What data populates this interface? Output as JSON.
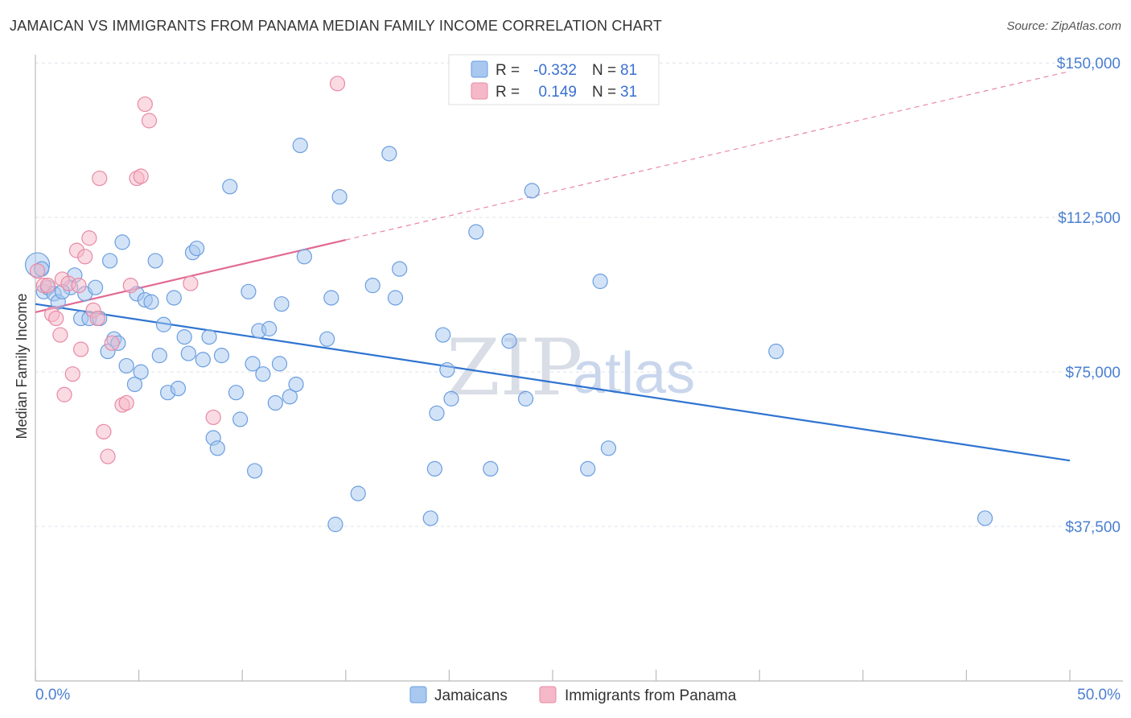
{
  "header": {
    "title": "JAMAICAN VS IMMIGRANTS FROM PANAMA MEDIAN FAMILY INCOME CORRELATION CHART",
    "source": "Source: ZipAtlas.com"
  },
  "watermark": {
    "part1": "ZIP",
    "part2": "atlas"
  },
  "legend_top": {
    "rows": [
      {
        "r_label": "R =",
        "r_value": "-0.332",
        "n_label": "N =",
        "n_value": "81",
        "color": "#a8c8f0"
      },
      {
        "r_label": "R =",
        "r_value": "0.149",
        "n_label": "N =",
        "n_value": "31",
        "color": "#f5b8c8"
      }
    ]
  },
  "chart_data": {
    "type": "scatter",
    "title": "JAMAICAN VS IMMIGRANTS FROM PANAMA MEDIAN FAMILY INCOME CORRELATION CHART",
    "xlabel": "",
    "ylabel": "Median Family Income",
    "xlim": [
      0,
      50
    ],
    "ylim": [
      0,
      152000
    ],
    "x_tick_labels": [
      "0.0%",
      "50.0%"
    ],
    "y_ticks": [
      37500,
      75000,
      112500,
      150000
    ],
    "y_tick_labels": [
      "$37,500",
      "$75,000",
      "$112,500",
      "$150,000"
    ],
    "grid": "horizontal dashed",
    "legend_position": "bottom-center",
    "series": [
      {
        "name": "Jamaicans",
        "color": "#a8c8f0",
        "stroke": "#6a9ee0",
        "trend": {
          "x": [
            0,
            50
          ],
          "y": [
            91500,
            53500
          ],
          "color": "#2f74d0"
        },
        "points": [
          [
            0.1,
            101000
          ],
          [
            0.4,
            94500
          ],
          [
            0.6,
            95500
          ],
          [
            0.9,
            94000
          ],
          [
            1.1,
            92000
          ],
          [
            1.7,
            95500
          ],
          [
            1.9,
            98500
          ],
          [
            2.2,
            88000
          ],
          [
            2.4,
            94000
          ],
          [
            2.6,
            88000
          ],
          [
            2.9,
            95500
          ],
          [
            3.1,
            88000
          ],
          [
            3.5,
            80000
          ],
          [
            3.6,
            102000
          ],
          [
            3.8,
            83000
          ],
          [
            4.0,
            82000
          ],
          [
            4.2,
            106500
          ],
          [
            4.4,
            76500
          ],
          [
            4.8,
            72000
          ],
          [
            4.9,
            94000
          ],
          [
            5.1,
            75000
          ],
          [
            5.3,
            92500
          ],
          [
            5.6,
            92000
          ],
          [
            5.8,
            102000
          ],
          [
            6.0,
            79000
          ],
          [
            6.2,
            86500
          ],
          [
            6.4,
            70000
          ],
          [
            6.7,
            93000
          ],
          [
            6.9,
            71000
          ],
          [
            7.2,
            83500
          ],
          [
            7.4,
            79500
          ],
          [
            7.6,
            104000
          ],
          [
            7.8,
            105000
          ],
          [
            8.1,
            78000
          ],
          [
            8.4,
            83500
          ],
          [
            8.6,
            59000
          ],
          [
            8.8,
            56500
          ],
          [
            9.0,
            79000
          ],
          [
            9.4,
            120000
          ],
          [
            9.7,
            70000
          ],
          [
            9.9,
            63500
          ],
          [
            10.3,
            94500
          ],
          [
            10.5,
            77000
          ],
          [
            10.6,
            51000
          ],
          [
            10.8,
            85000
          ],
          [
            11.0,
            74500
          ],
          [
            11.3,
            85500
          ],
          [
            11.6,
            67500
          ],
          [
            11.8,
            77000
          ],
          [
            11.9,
            91500
          ],
          [
            12.3,
            69000
          ],
          [
            12.6,
            72000
          ],
          [
            12.8,
            130000
          ],
          [
            13.0,
            103000
          ],
          [
            14.1,
            83000
          ],
          [
            14.3,
            93000
          ],
          [
            14.5,
            38000
          ],
          [
            14.7,
            117500
          ],
          [
            15.6,
            45500
          ],
          [
            16.3,
            96000
          ],
          [
            17.1,
            128000
          ],
          [
            17.4,
            93000
          ],
          [
            17.6,
            100000
          ],
          [
            19.1,
            39500
          ],
          [
            19.3,
            51500
          ],
          [
            19.4,
            65000
          ],
          [
            19.7,
            84000
          ],
          [
            19.9,
            75500
          ],
          [
            20.1,
            68500
          ],
          [
            21.3,
            109000
          ],
          [
            22.0,
            51500
          ],
          [
            22.9,
            82500
          ],
          [
            23.7,
            68500
          ],
          [
            24.0,
            119000
          ],
          [
            26.7,
            51500
          ],
          [
            27.3,
            97000
          ],
          [
            27.7,
            56500
          ],
          [
            35.8,
            80000
          ],
          [
            45.9,
            39500
          ],
          [
            0.3,
            100000
          ],
          [
            1.3,
            94500
          ]
        ]
      },
      {
        "name": "Immigrants from Panama",
        "color": "#f5b8c8",
        "stroke": "#e88aa4",
        "trend": {
          "x": [
            0,
            50
          ],
          "y": [
            89500,
            148000
          ],
          "solid_to_x": 15,
          "color": "#e26a92"
        },
        "points": [
          [
            0.1,
            99500
          ],
          [
            0.4,
            96000
          ],
          [
            0.6,
            96000
          ],
          [
            0.8,
            89000
          ],
          [
            1.0,
            88000
          ],
          [
            1.2,
            84000
          ],
          [
            1.3,
            97500
          ],
          [
            1.6,
            96500
          ],
          [
            1.8,
            74500
          ],
          [
            2.0,
            104500
          ],
          [
            2.2,
            80500
          ],
          [
            2.4,
            103000
          ],
          [
            2.6,
            107500
          ],
          [
            2.8,
            90000
          ],
          [
            3.0,
            88000
          ],
          [
            3.3,
            60500
          ],
          [
            3.5,
            54500
          ],
          [
            3.7,
            82000
          ],
          [
            4.2,
            67000
          ],
          [
            4.4,
            67500
          ],
          [
            4.6,
            96000
          ],
          [
            4.9,
            122000
          ],
          [
            5.1,
            122500
          ],
          [
            5.3,
            140000
          ],
          [
            5.5,
            136000
          ],
          [
            7.5,
            96500
          ],
          [
            8.6,
            64000
          ],
          [
            14.6,
            145000
          ],
          [
            1.4,
            69500
          ],
          [
            3.1,
            122000
          ],
          [
            2.1,
            96000
          ]
        ]
      }
    ]
  },
  "bottom_legend": [
    {
      "label": "Jamaicans",
      "color": "#a8c8f0"
    },
    {
      "label": "Immigrants from Panama",
      "color": "#f5b8c8"
    }
  ]
}
